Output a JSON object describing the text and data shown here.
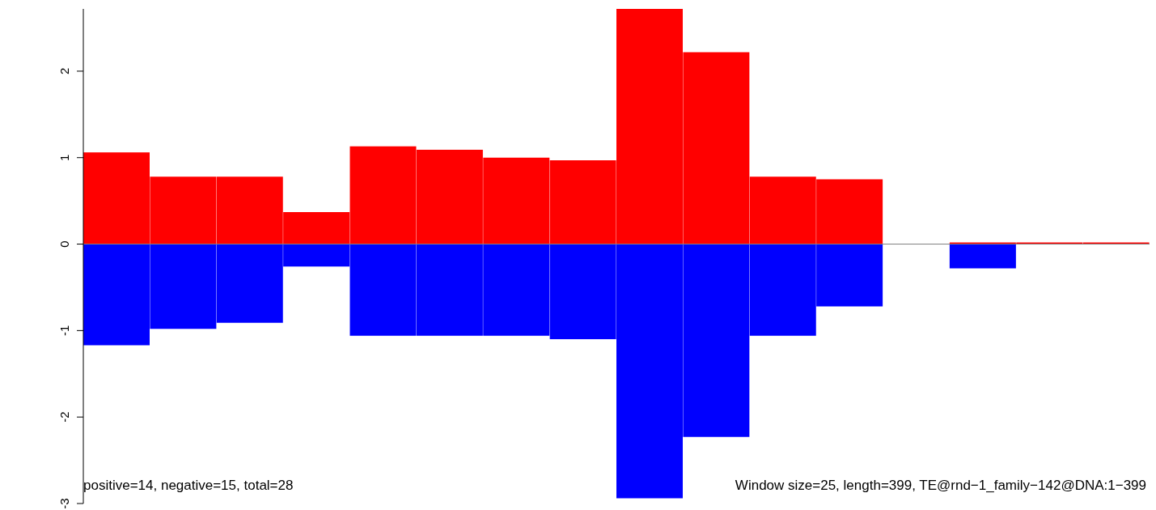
{
  "chart_data": {
    "type": "bar",
    "stacked": true,
    "categories": [
      null,
      null,
      null,
      null,
      null,
      null,
      null,
      null,
      null,
      null,
      null,
      null,
      null,
      null,
      null,
      null
    ],
    "series": [
      {
        "color": "#ff0000",
        "values": [
          1.06,
          0.78,
          0.78,
          0.37,
          1.13,
          1.09,
          1.0,
          0.97,
          2.72,
          2.22,
          0.78,
          0.75,
          0,
          0.02,
          0.02,
          0.02
        ]
      },
      {
        "color": "#0000ff",
        "values": [
          -1.17,
          -0.98,
          -0.91,
          -0.26,
          -1.06,
          -1.06,
          -1.06,
          -1.1,
          -2.94,
          -2.23,
          -1.06,
          -0.72,
          0,
          -0.28,
          0,
          0
        ]
      }
    ],
    "ylim": [
      -3,
      2.72
    ],
    "yticks": [
      -3,
      -2,
      -1,
      0,
      1,
      2
    ],
    "tick_labels": "y",
    "ref_lines": [
      {
        "axis": "y",
        "value": 0,
        "color": "#808080"
      }
    ],
    "annotations": [
      "positive=14, negative=15, total=28",
      "Window size=25, length=399, TE@rnd−1_family−142@DNA:1−399"
    ]
  }
}
